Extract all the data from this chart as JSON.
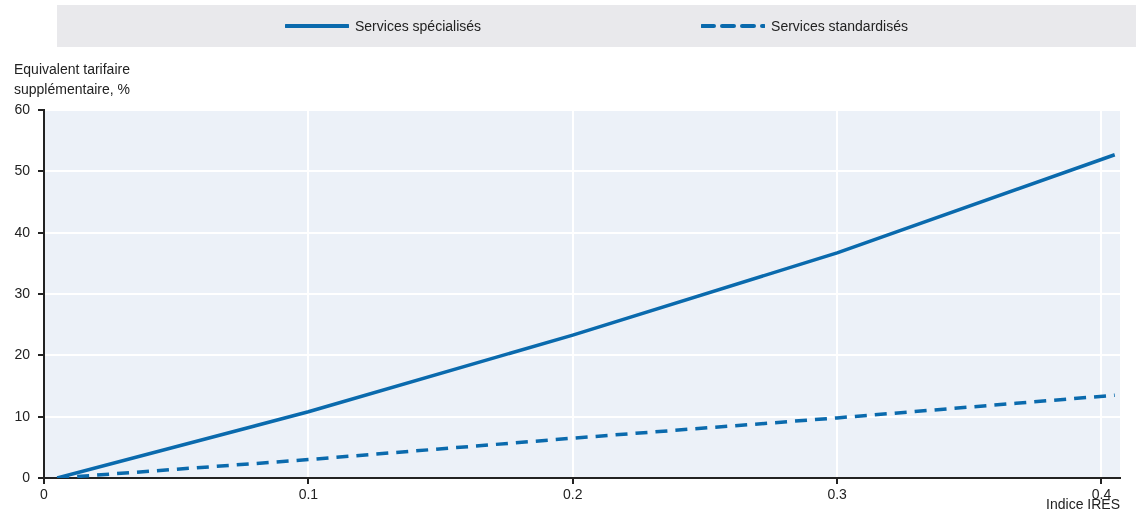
{
  "chart_data": {
    "type": "line",
    "xlabel": "Indice IRES",
    "ylabel": "Equivalent tarifaire supplémentaire, %",
    "series": [
      {
        "name": "Services spécialisés",
        "color": "#0a6aad",
        "line_style": "solid",
        "x": [
          0.005,
          0.1,
          0.2,
          0.3,
          0.405
        ],
        "values": [
          0,
          10.8,
          23.3,
          36.7,
          52.7
        ]
      },
      {
        "name": "Services standardisés",
        "color": "#0a6aad",
        "line_style": "dashed",
        "x": [
          0.005,
          0.1,
          0.2,
          0.3,
          0.405
        ],
        "values": [
          0,
          3.0,
          6.5,
          9.8,
          13.5
        ]
      }
    ],
    "xlim": [
      0,
      0.407
    ],
    "xticks": [
      0,
      0.1,
      0.2,
      0.3,
      0.4
    ],
    "ylim": [
      0,
      60
    ],
    "yticks": [
      0,
      10,
      20,
      30,
      40,
      50,
      60
    ],
    "grid": true,
    "legend": "top",
    "marker": "none"
  }
}
